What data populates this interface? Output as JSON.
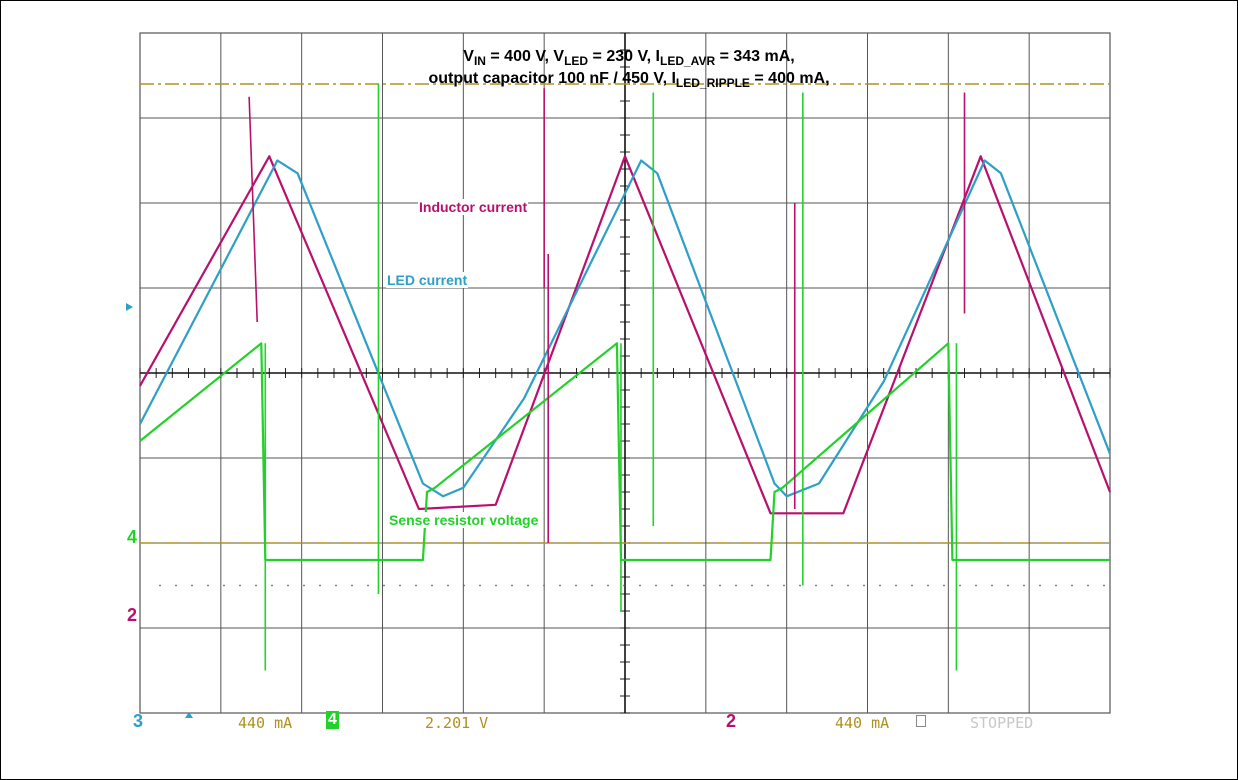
{
  "colors": {
    "inductor": "#b8106c",
    "led": "#2e9fc6",
    "sense": "#22d12a",
    "level": "#b09020",
    "grid": "#555555",
    "ch3": "#2e9fc6",
    "ch4": "#22d12a",
    "ch2": "#b8106c",
    "readout": "#b09020",
    "stopped": "#c8c8c8"
  },
  "title": {
    "line1": [
      {
        "t": "V"
      },
      {
        "sub": "IN"
      },
      {
        "t": " = 400 V, V"
      },
      {
        "sub": "LED"
      },
      {
        "t": " = 230 V, I"
      },
      {
        "sub": "LED_AVR"
      },
      {
        "t": " = 343 mA,"
      }
    ],
    "line2": [
      {
        "t": "output capacitor 100 nF / 450 V, I"
      },
      {
        "sub": "LED_RIPPLE"
      },
      {
        "t": " = 400 mA,"
      }
    ]
  },
  "annotations": {
    "inductor": "Inductor current",
    "led": "LED current",
    "sense": "Sense resistor voltage"
  },
  "status_bar": {
    "ch3_label": "3",
    "ch3_scale": "440 mA",
    "ch4_label": "4",
    "ch4_scale": "2.201 V",
    "ch2_label": "2",
    "ch2_scale": "440 mA",
    "stopped": "STOPPED"
  },
  "markers": {
    "ch4": "4",
    "ch2": "2"
  },
  "chart_data": {
    "type": "line",
    "title": "VIN = 400 V, VLED = 230 V, ILED_AVR = 343 mA, output capacitor 100 nF / 450 V, ILED_RIPPLE = 400 mA,",
    "x_divisions": 12,
    "y_divisions": 8,
    "xlim": [
      0,
      12
    ],
    "ylim": [
      -4,
      4
    ],
    "grid": true,
    "reference_levels": [
      3.4,
      -2.0
    ],
    "series": [
      {
        "name": "Inductor current",
        "x": [
          0,
          1.6,
          3.45,
          4.4,
          6.0,
          7.8,
          8.7,
          10.4,
          12.0
        ],
        "y": [
          -0.15,
          2.55,
          -1.6,
          -1.55,
          2.55,
          -1.65,
          -1.65,
          2.55,
          -1.4
        ]
      },
      {
        "name": "LED current",
        "x": [
          0,
          1.7,
          1.95,
          3.5,
          3.75,
          4.0,
          4.75,
          6.2,
          6.4,
          7.85,
          8.0,
          8.4,
          9.2,
          10.45,
          10.65,
          12.0
        ],
        "y": [
          -0.6,
          2.5,
          2.35,
          -1.3,
          -1.45,
          -1.35,
          -0.3,
          2.5,
          2.35,
          -1.3,
          -1.45,
          -1.3,
          -0.1,
          2.5,
          2.35,
          -0.95
        ]
      },
      {
        "name": "Sense resistor voltage",
        "x": [
          0,
          1.5,
          1.55,
          1.65,
          3.5,
          3.55,
          3.65,
          5.9,
          5.95,
          6.05,
          7.8,
          7.85,
          7.95,
          10.0,
          10.05,
          10.15,
          12.0
        ],
        "y": [
          -0.8,
          0.35,
          -2.2,
          -2.2,
          -2.2,
          -1.4,
          -1.35,
          0.35,
          -2.2,
          -2.2,
          -2.2,
          -1.4,
          -1.35,
          0.35,
          -2.2,
          -2.2,
          -2.2
        ]
      }
    ]
  }
}
